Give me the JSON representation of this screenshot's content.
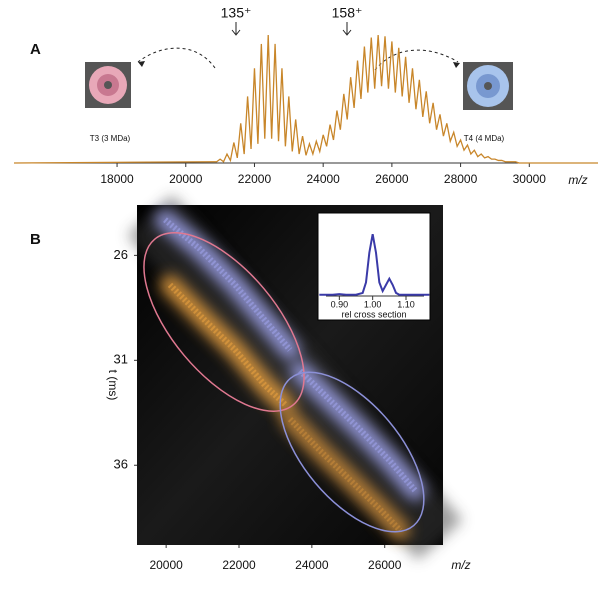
{
  "chart_data": [
    {
      "type": "line",
      "label": "A",
      "xlabel": "m/z",
      "color": "#c8862a",
      "annotations": [
        "135⁺",
        "158⁺",
        "T3 (3 MDa)",
        "T4 (4 MDa)"
      ],
      "xlim": [
        15000,
        32000
      ],
      "ylim": [
        0,
        100
      ],
      "xticks": [
        18000,
        20000,
        22000,
        24000,
        26000,
        28000,
        30000
      ],
      "x": [
        15000,
        20800,
        20900,
        21000,
        21100,
        21200,
        21300,
        21400,
        21500,
        21600,
        21700,
        21800,
        21900,
        22000,
        22100,
        22200,
        22300,
        22400,
        22500,
        22600,
        22700,
        22800,
        22900,
        23000,
        23100,
        23200,
        23300,
        23400,
        23500,
        23600,
        23700,
        23800,
        23900,
        24000,
        24100,
        24200,
        24300,
        24400,
        24500,
        24600,
        24700,
        24800,
        24900,
        25000,
        25100,
        25200,
        25300,
        25400,
        25500,
        25600,
        25700,
        25800,
        25900,
        26000,
        26100,
        26200,
        26300,
        26400,
        26500,
        26600,
        26700,
        26800,
        26900,
        27000,
        27100,
        27200,
        27300,
        27400,
        27500,
        27600,
        27700,
        27800,
        27900,
        28000,
        28100,
        28200,
        28300,
        28400,
        28500,
        28600,
        28700,
        28800,
        28900,
        29000,
        29100,
        29200,
        29300,
        29400,
        29500,
        29600,
        29700,
        29800,
        29900,
        30000,
        32000
      ],
      "values": [
        0,
        1,
        1,
        3,
        1,
        7,
        2,
        16,
        4,
        31,
        7,
        52,
        11,
        74,
        15,
        93,
        19,
        100,
        19,
        93,
        17,
        74,
        13,
        52,
        9,
        34,
        7,
        21,
        6,
        15,
        7,
        17,
        9,
        22,
        13,
        30,
        18,
        41,
        26,
        54,
        34,
        67,
        43,
        80,
        50,
        91,
        55,
        98,
        58,
        100,
        60,
        99,
        58,
        95,
        55,
        90,
        52,
        83,
        47,
        74,
        42,
        65,
        36,
        56,
        31,
        47,
        26,
        38,
        21,
        31,
        17,
        24,
        13,
        18,
        10,
        14,
        7,
        10,
        5,
        7,
        4,
        5,
        3,
        3,
        2,
        2,
        1,
        1,
        1,
        1,
        0,
        0,
        0,
        0,
        0
      ]
    },
    {
      "type": "heatmap",
      "label": "B",
      "xlabel": "m/z",
      "ylabel": "t (ms)",
      "xlim": [
        19200,
        27600
      ],
      "ylim": [
        23.6,
        39.8
      ],
      "xticks": [
        20000,
        22000,
        24000,
        26000
      ],
      "yticks": [
        26,
        31,
        36
      ],
      "series": [
        {
          "color": "#9ea2ea",
          "x": [
            19969,
            20929,
            21890,
            22714,
            23400
          ],
          "y": [
            24.3,
            25.7,
            27.4,
            29.1,
            30.5
          ]
        },
        {
          "color": "#e8a040",
          "x": [
            20106,
            21067,
            21890,
            22714,
            23263
          ],
          "y": [
            27.4,
            29.1,
            30.5,
            32.2,
            33.1
          ]
        },
        {
          "color": "#9ea2ea",
          "x": [
            23675,
            24498,
            25322,
            26145,
            26832
          ],
          "y": [
            31.5,
            32.9,
            34.3,
            35.8,
            37.2
          ]
        },
        {
          "color": "#c88a3a",
          "x": [
            23400,
            24223,
            25047,
            25870,
            26420
          ],
          "y": [
            33.8,
            35.3,
            36.7,
            38.1,
            39.1
          ]
        }
      ]
    },
    {
      "type": "line",
      "xlabel": "rel cross section",
      "color": "#3a3aa8",
      "xlim": [
        0.836,
        1.172
      ],
      "ylim": [
        0,
        110
      ],
      "xticks": [
        {
          "value": 0.9,
          "label": "0.90"
        },
        {
          "value": 1.0,
          "label": "1.00"
        },
        {
          "value": 1.1,
          "label": "1.10"
        }
      ],
      "x": [
        0.84,
        0.88,
        0.9,
        0.92,
        0.95,
        0.97,
        0.98,
        0.99,
        1.0,
        1.01,
        1.02,
        1.03,
        1.04,
        1.05,
        1.06,
        1.07,
        1.08,
        1.12,
        1.17
      ],
      "values": [
        2,
        2,
        3,
        2,
        2,
        5,
        22,
        70,
        100,
        70,
        22,
        8,
        18,
        28,
        18,
        5,
        2,
        2,
        2
      ]
    }
  ]
}
